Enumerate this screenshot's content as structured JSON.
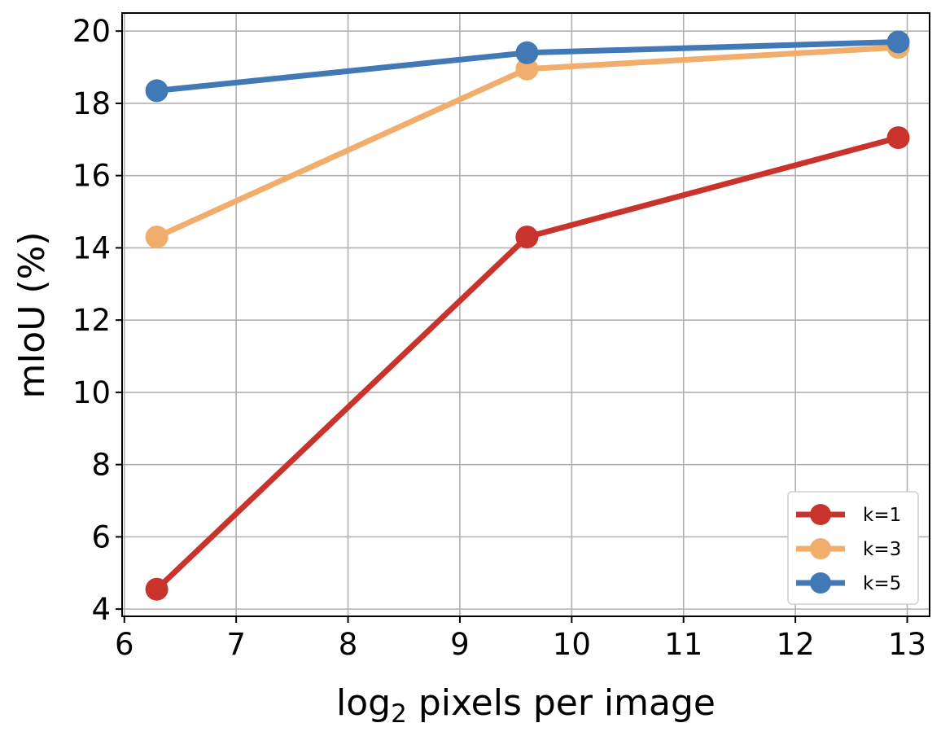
{
  "chart_data": {
    "type": "line",
    "xlabel": "log2 pixels per image",
    "xlabel_base": "log",
    "xlabel_subscript": "2",
    "xlabel_rest": " pixels per image",
    "ylabel": "mIoU (%)",
    "xlim": [
      5.98,
      13.2
    ],
    "ylim": [
      3.8,
      20.5
    ],
    "xticks": [
      6,
      7,
      8,
      9,
      10,
      11,
      12,
      13
    ],
    "yticks": [
      4,
      6,
      8,
      10,
      12,
      14,
      16,
      18,
      20
    ],
    "grid": true,
    "legend_position": "bottom-right",
    "series": [
      {
        "name": "k=1",
        "color": "#c8342c",
        "x": [
          6.29,
          9.6,
          12.92
        ],
        "y": [
          4.55,
          14.3,
          17.05
        ]
      },
      {
        "name": "k=3",
        "color": "#f1ad6b",
        "x": [
          6.29,
          9.6,
          12.92
        ],
        "y": [
          14.3,
          18.95,
          19.55
        ]
      },
      {
        "name": "k=5",
        "color": "#4178b6",
        "x": [
          6.29,
          9.6,
          12.92
        ],
        "y": [
          18.35,
          19.4,
          19.7
        ]
      }
    ]
  }
}
